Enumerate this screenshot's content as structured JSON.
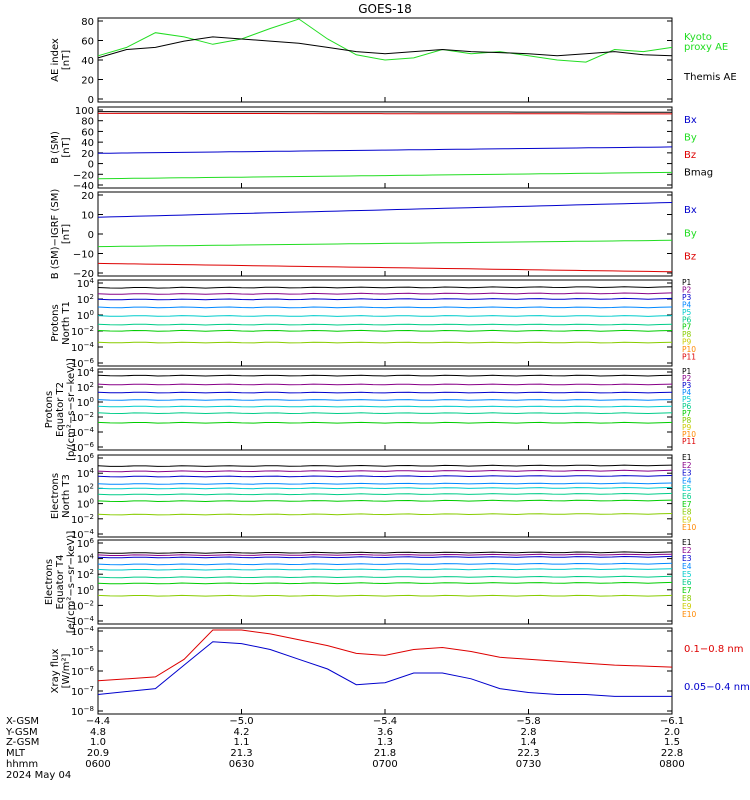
{
  "title": "GOES-18",
  "colors": {
    "black": "#000000",
    "red": "#dd0000",
    "green": "#22dd22",
    "blue": "#0000cc",
    "p": [
      "#000000",
      "#880088",
      "#0000cc",
      "#0088ff",
      "#00cccc",
      "#00cc88",
      "#00cc00",
      "#88cc00",
      "#cccc00",
      "#ff8800",
      "#dd0000",
      "#aa0000"
    ]
  },
  "panels": [
    {
      "id": "ae",
      "ylabel": [
        "AE index",
        "[nT]"
      ],
      "ticks": [
        "80",
        "60",
        "40",
        "20",
        "0"
      ],
      "legend": [
        {
          "text": "Kyoto",
          "color": "#22dd22"
        },
        {
          "text": "proxy AE",
          "color": "#22dd22"
        },
        {
          "text": "Themis AE",
          "color": "#000000"
        }
      ]
    },
    {
      "id": "bsm",
      "ylabel": [
        "B (SM)",
        "[nT]"
      ],
      "ticks": [
        "100",
        "80",
        "60",
        "40",
        "20",
        "0",
        "−20",
        "−40"
      ],
      "legend": [
        {
          "text": "Bx",
          "color": "#0000cc"
        },
        {
          "text": "By",
          "color": "#22dd22"
        },
        {
          "text": "Bz",
          "color": "#dd0000"
        },
        {
          "text": "Bmag",
          "color": "#000000"
        }
      ]
    },
    {
      "id": "bigrf",
      "ylabel": [
        "B (SM)−IGRF (SM)",
        "[nT]"
      ],
      "ticks": [
        "20",
        "10",
        "0",
        "−10",
        "−20"
      ],
      "legend": [
        {
          "text": "Bx",
          "color": "#0000cc"
        },
        {
          "text": "By",
          "color": "#22dd22"
        },
        {
          "text": "Bz",
          "color": "#dd0000"
        }
      ]
    },
    {
      "id": "pn",
      "ylabel": [
        "Protons",
        "North T1"
      ],
      "ticks": [
        {
          "b": "10",
          "e": "4"
        },
        {
          "b": "10",
          "e": "2"
        },
        {
          "b": "10",
          "e": "0"
        },
        {
          "b": "10",
          "e": "−2"
        },
        {
          "b": "10",
          "e": "−4"
        },
        {
          "b": "10",
          "e": "−6"
        }
      ],
      "legend": [
        "P1",
        "P2",
        "P3",
        "P4",
        "P5",
        "P6",
        "P7",
        "P8",
        "P9",
        "P10",
        "P11"
      ]
    },
    {
      "id": "pe",
      "ylabel": [
        "Protons",
        "Equator T2",
        "[p/(cm²−s−sr−keV)]"
      ],
      "ticks": [
        {
          "b": "10",
          "e": "4"
        },
        {
          "b": "10",
          "e": "2"
        },
        {
          "b": "10",
          "e": "0"
        },
        {
          "b": "10",
          "e": "−2"
        },
        {
          "b": "10",
          "e": "−4"
        },
        {
          "b": "10",
          "e": "−6"
        }
      ],
      "legend": [
        "P1",
        "P2",
        "P3",
        "P4",
        "P5",
        "P6",
        "P7",
        "P8",
        "P9",
        "P10",
        "P11"
      ]
    },
    {
      "id": "en",
      "ylabel": [
        "Electrons",
        "North T3"
      ],
      "ticks": [
        {
          "b": "10",
          "e": "6"
        },
        {
          "b": "10",
          "e": "4"
        },
        {
          "b": "10",
          "e": "2"
        },
        {
          "b": "10",
          "e": "0"
        },
        {
          "b": "10",
          "e": "−2"
        },
        {
          "b": "10",
          "e": "−4"
        }
      ],
      "legend": [
        "E1",
        "E2",
        "E3",
        "E4",
        "E5",
        "E6",
        "E7",
        "E8",
        "E9",
        "E10"
      ]
    },
    {
      "id": "ee",
      "ylabel": [
        "Electrons",
        "Equator T4",
        "[e/(cm²−s−sr−keV)]"
      ],
      "ticks": [
        {
          "b": "10",
          "e": "6"
        },
        {
          "b": "10",
          "e": "4"
        },
        {
          "b": "10",
          "e": "2"
        },
        {
          "b": "10",
          "e": "0"
        },
        {
          "b": "10",
          "e": "−2"
        },
        {
          "b": "10",
          "e": "−4"
        }
      ],
      "legend": [
        "E1",
        "E2",
        "E3",
        "E4",
        "E5",
        "E6",
        "E7",
        "E8",
        "E9",
        "E10"
      ]
    },
    {
      "id": "xray",
      "ylabel": [
        "Xray flux",
        "[W/m²]"
      ],
      "ticks": [
        {
          "b": "10",
          "e": "−4"
        },
        {
          "b": "10",
          "e": "−5"
        },
        {
          "b": "10",
          "e": "−6"
        },
        {
          "b": "10",
          "e": "−7"
        },
        {
          "b": "10",
          "e": "−8"
        }
      ],
      "legend": [
        {
          "text": "0.1−0.8 nm",
          "color": "#dd0000"
        },
        {
          "text": "0.05−0.4 nm",
          "color": "#0000cc"
        }
      ]
    }
  ],
  "footer": {
    "row_labels": [
      "X-GSM",
      "Y-GSM",
      "Z-GSM",
      "MLT",
      "hhmm",
      "2024 May 04"
    ],
    "columns": [
      {
        "x": "−4.4",
        "y": "4.8",
        "z": "1.0",
        "mlt": "20.9",
        "hhmm": "0600"
      },
      {
        "x": "−5.0",
        "y": "4.2",
        "z": "1.1",
        "mlt": "21.3",
        "hhmm": "0630"
      },
      {
        "x": "−5.4",
        "y": "3.6",
        "z": "1.3",
        "mlt": "21.8",
        "hhmm": "0700"
      },
      {
        "x": "−5.8",
        "y": "2.8",
        "z": "1.4",
        "mlt": "22.3",
        "hhmm": "0730"
      },
      {
        "x": "−6.1",
        "y": "2.0",
        "z": "1.5",
        "mlt": "22.8",
        "hhmm": "0800"
      }
    ]
  },
  "chart_data": [
    {
      "type": "line",
      "panel": "ae",
      "ylim": [
        0,
        80
      ],
      "x_hours": [
        6.0,
        6.1,
        6.2,
        6.3,
        6.4,
        6.5,
        6.6,
        6.7,
        6.8,
        6.9,
        7.0,
        7.1,
        7.2,
        7.3,
        7.4,
        7.5,
        7.6,
        7.7,
        7.8,
        7.9,
        8.0
      ],
      "series": [
        {
          "name": "Kyoto proxy AE",
          "values": [
            44,
            52,
            66,
            62,
            55,
            60,
            70,
            79,
            60,
            45,
            40,
            42,
            50,
            46,
            48,
            44,
            40,
            38,
            50,
            48,
            52
          ]
        },
        {
          "name": "Themis AE",
          "values": [
            42,
            50,
            52,
            58,
            62,
            60,
            58,
            56,
            52,
            48,
            46,
            48,
            50,
            48,
            47,
            46,
            44,
            46,
            48,
            45,
            44
          ]
        }
      ]
    },
    {
      "type": "line",
      "panel": "bsm",
      "ylim": [
        -40,
        100
      ],
      "x_hours": [
        6.0,
        8.0
      ],
      "series": [
        {
          "name": "Bx",
          "values": [
            20,
            31
          ]
        },
        {
          "name": "By",
          "values": [
            -24,
            -13
          ]
        },
        {
          "name": "Bz",
          "values": [
            89,
            88
          ]
        },
        {
          "name": "Bmag",
          "values": [
            92,
            91
          ]
        }
      ]
    },
    {
      "type": "line",
      "panel": "bigrf",
      "ylim": [
        -20,
        20
      ],
      "x_hours": [
        6.0,
        8.0
      ],
      "series": [
        {
          "name": "Bx",
          "values": [
            8,
            15
          ]
        },
        {
          "name": "By",
          "values": [
            -6,
            -3
          ]
        },
        {
          "name": "Bz",
          "values": [
            -14,
            -18
          ]
        }
      ]
    },
    {
      "type": "line",
      "panel": "pn",
      "log": true,
      "ylim": [
        -6.5,
        4.5
      ],
      "x_hours": [
        6.0,
        8.0
      ],
      "series": [
        {
          "name": "P1",
          "values": [
            3.5,
            3.6
          ]
        },
        {
          "name": "P2",
          "values": [
            2.7,
            2.8
          ]
        },
        {
          "name": "P3",
          "values": [
            2.0,
            2.1
          ]
        },
        {
          "name": "P4",
          "values": [
            1.0,
            1.0
          ]
        },
        {
          "name": "P5",
          "values": [
            -0.1,
            -0.1
          ]
        },
        {
          "name": "P6",
          "values": [
            -1.2,
            -1.2
          ]
        },
        {
          "name": "P7",
          "values": [
            -2.0,
            -2.0
          ]
        },
        {
          "name": "P8",
          "values": [
            -3.5,
            -3.5
          ]
        }
      ]
    },
    {
      "type": "line",
      "panel": "pe",
      "log": true,
      "ylim": [
        -6.5,
        4.5
      ],
      "x_hours": [
        6.0,
        8.0
      ],
      "series": [
        {
          "name": "P1",
          "values": [
            3.6,
            3.6
          ]
        },
        {
          "name": "P2",
          "values": [
            2.4,
            2.4
          ]
        },
        {
          "name": "P3",
          "values": [
            1.3,
            1.3
          ]
        },
        {
          "name": "P4",
          "values": [
            0.3,
            0.3
          ]
        },
        {
          "name": "P5",
          "values": [
            -0.6,
            -0.6
          ]
        },
        {
          "name": "P6",
          "values": [
            -1.5,
            -1.5
          ]
        },
        {
          "name": "P7",
          "values": [
            -2.8,
            -2.8
          ]
        }
      ]
    },
    {
      "type": "line",
      "panel": "en",
      "log": true,
      "ylim": [
        -4.5,
        6.5
      ],
      "x_hours": [
        6.0,
        8.0
      ],
      "series": [
        {
          "name": "E1",
          "values": [
            5.0,
            5.1
          ]
        },
        {
          "name": "E2",
          "values": [
            4.3,
            4.4
          ]
        },
        {
          "name": "E3",
          "values": [
            3.6,
            3.7
          ]
        },
        {
          "name": "E4",
          "values": [
            2.6,
            2.7
          ]
        },
        {
          "name": "E5",
          "values": [
            2.0,
            2.1
          ]
        },
        {
          "name": "E6",
          "values": [
            1.2,
            1.3
          ]
        },
        {
          "name": "E7",
          "values": [
            0.3,
            0.4
          ]
        },
        {
          "name": "E8",
          "values": [
            -1.5,
            -1.4
          ]
        }
      ]
    },
    {
      "type": "line",
      "panel": "ee",
      "log": true,
      "ylim": [
        -4.5,
        6.5
      ],
      "x_hours": [
        6.0,
        8.0
      ],
      "series": [
        {
          "name": "E1",
          "values": [
            4.8,
            4.9
          ]
        },
        {
          "name": "E2",
          "values": [
            4.5,
            4.6
          ]
        },
        {
          "name": "E3",
          "values": [
            4.2,
            4.3
          ]
        },
        {
          "name": "E4",
          "values": [
            3.3,
            3.4
          ]
        },
        {
          "name": "E5",
          "values": [
            2.6,
            2.7
          ]
        },
        {
          "name": "E6",
          "values": [
            1.6,
            1.7
          ]
        },
        {
          "name": "E7",
          "values": [
            0.8,
            0.9
          ]
        },
        {
          "name": "E8",
          "values": [
            -0.8,
            -0.8
          ]
        }
      ]
    },
    {
      "type": "line",
      "panel": "xray",
      "log": true,
      "ylim": [
        -8.3,
        -3.9
      ],
      "x_hours": [
        6.0,
        6.2,
        6.3,
        6.4,
        6.5,
        6.6,
        6.7,
        6.8,
        6.9,
        7.0,
        7.1,
        7.2,
        7.3,
        7.4,
        7.5,
        7.6,
        7.7,
        7.8,
        8.0
      ],
      "series": [
        {
          "name": "0.1−0.8 nm",
          "values": [
            -6.6,
            -6.4,
            -5.5,
            -4.0,
            -4.0,
            -4.2,
            -4.5,
            -4.8,
            -5.2,
            -5.3,
            -5.0,
            -4.9,
            -5.1,
            -5.4,
            -5.5,
            -5.6,
            -5.7,
            -5.8,
            -5.9
          ]
        },
        {
          "name": "0.05−0.4 nm",
          "values": [
            -7.3,
            -7.0,
            -5.8,
            -4.6,
            -4.7,
            -5.0,
            -5.5,
            -6.0,
            -6.8,
            -6.7,
            -6.2,
            -6.2,
            -6.5,
            -7.0,
            -7.2,
            -7.3,
            -7.3,
            -7.4,
            -7.4
          ]
        }
      ]
    }
  ]
}
